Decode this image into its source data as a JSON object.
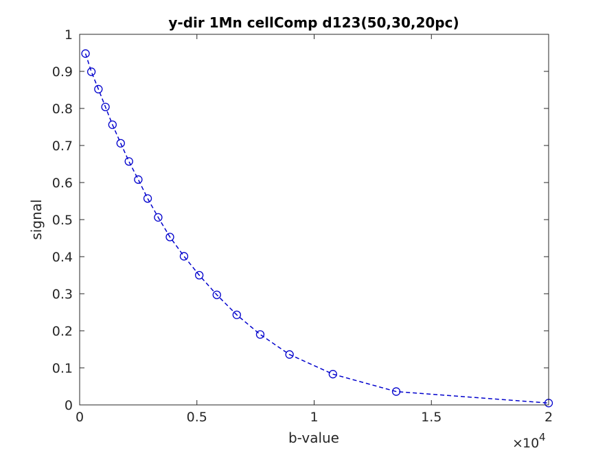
{
  "chart_data": {
    "type": "line",
    "title": "y-dir 1Mn cellComp d123(50,30,20pc)",
    "xlabel": "b-value",
    "ylabel": "signal",
    "xlim": [
      0,
      20000
    ],
    "ylim": [
      0,
      1
    ],
    "x_exponent_label": {
      "base": "10",
      "exponent": "4"
    },
    "x_ticks": [
      0,
      5000,
      10000,
      15000,
      20000
    ],
    "x_tick_labels": [
      "0",
      "0.5",
      "1",
      "1.5",
      "2"
    ],
    "y_ticks": [
      0,
      0.1,
      0.2,
      0.3,
      0.4,
      0.5,
      0.6,
      0.7,
      0.8,
      0.9,
      1
    ],
    "y_tick_labels": [
      "0",
      "0.1",
      "0.2",
      "0.3",
      "0.4",
      "0.5",
      "0.6",
      "0.7",
      "0.8",
      "0.9",
      "1"
    ],
    "grid": false,
    "line_style": "dashed",
    "marker": "circle",
    "color": "#0000cc",
    "x": [
      250,
      500,
      800,
      1100,
      1400,
      1750,
      2100,
      2500,
      2900,
      3350,
      3850,
      4450,
      5100,
      5850,
      6700,
      7700,
      8950,
      10800,
      13500,
      20000
    ],
    "y": [
      0.948,
      0.899,
      0.852,
      0.804,
      0.756,
      0.706,
      0.657,
      0.608,
      0.557,
      0.506,
      0.453,
      0.401,
      0.35,
      0.297,
      0.243,
      0.19,
      0.136,
      0.083,
      0.036,
      0.005
    ]
  }
}
